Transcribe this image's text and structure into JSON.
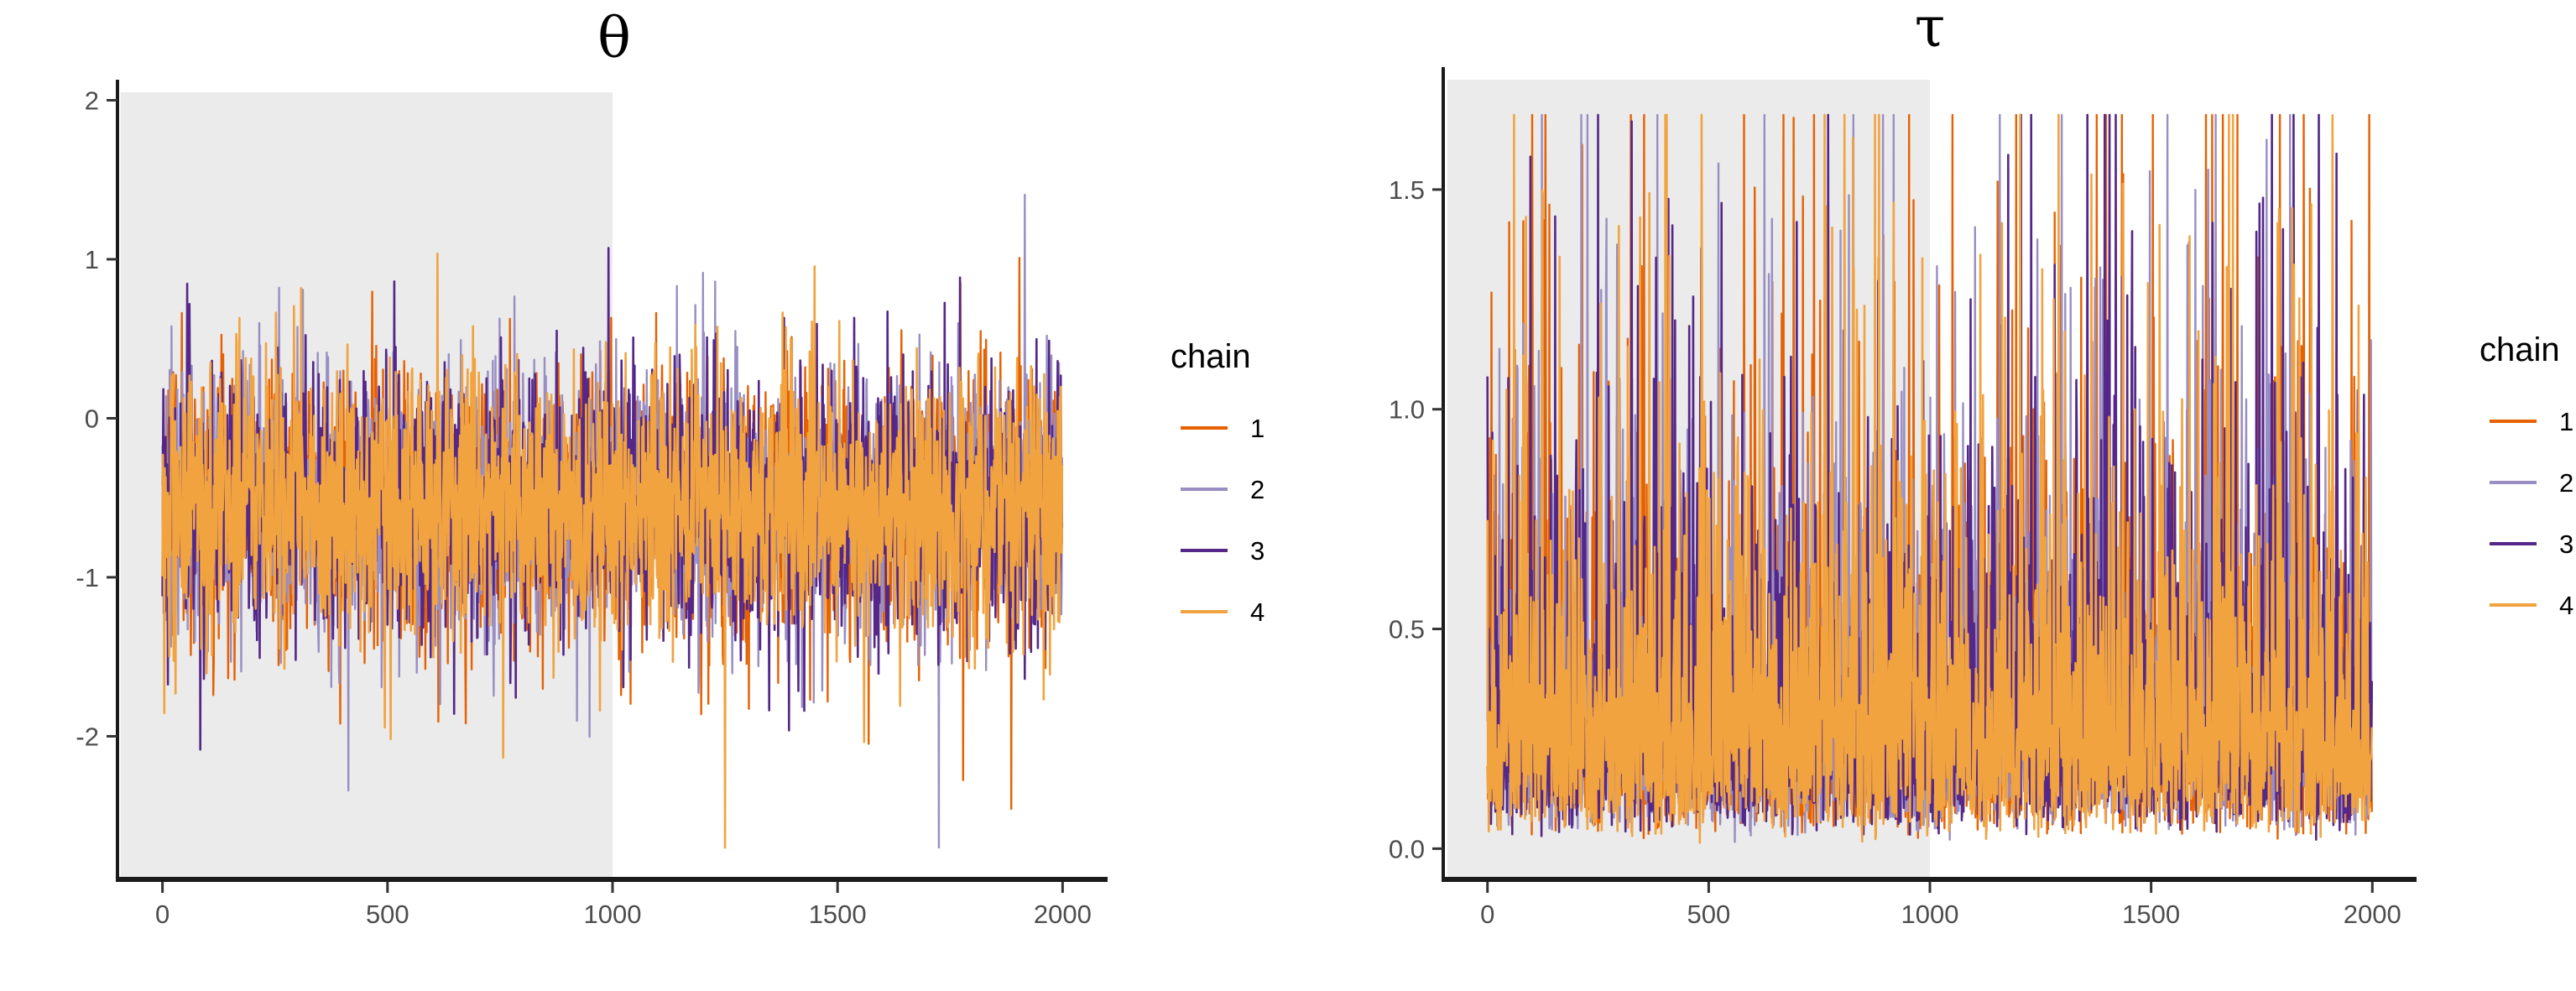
{
  "chart_data": [
    {
      "type": "line",
      "title": "θ",
      "xlabel": "",
      "ylabel": "",
      "x_ticks": [
        0,
        500,
        1000,
        1500,
        2000
      ],
      "x_tick_labels": [
        "0",
        "500",
        "1000",
        "1500",
        "2000"
      ],
      "y_ticks": [
        2,
        1,
        0,
        -1,
        -2
      ],
      "y_tick_labels": [
        "2",
        "1",
        "0",
        "-1",
        "-2"
      ],
      "xlim": [
        -100,
        2100
      ],
      "ylim": [
        -2.9,
        2.05
      ],
      "warmup_region": [
        0,
        1000
      ],
      "grid": false,
      "legend_title": "chain",
      "legend_position": "right",
      "series_summary": {
        "center": -0.55,
        "spread": 0.42,
        "min": -2.7,
        "max": 1.85,
        "n_iterations": 2000
      },
      "series": [
        {
          "name": "1",
          "color": "#e66101"
        },
        {
          "name": "2",
          "color": "#998ec3"
        },
        {
          "name": "3",
          "color": "#542788"
        },
        {
          "name": "4",
          "color": "#f1a340"
        }
      ]
    },
    {
      "type": "line",
      "title": "τ",
      "xlabel": "",
      "ylabel": "",
      "x_ticks": [
        0,
        500,
        1000,
        1500,
        2000
      ],
      "x_tick_labels": [
        "0",
        "500",
        "1000",
        "1500",
        "2000"
      ],
      "y_ticks": [
        1.5,
        1.0,
        0.5,
        0.0
      ],
      "y_tick_labels": [
        "1.5",
        "1.0",
        "0.5",
        "0.0"
      ],
      "xlim": [
        -100,
        2100
      ],
      "ylim": [
        -0.07,
        1.75
      ],
      "warmup_region": [
        0,
        1000
      ],
      "grid": false,
      "legend_title": "chain",
      "legend_position": "right",
      "series_summary": {
        "center": 0.32,
        "min": 0.0,
        "max": 1.67,
        "n_iterations": 2000
      },
      "series": [
        {
          "name": "1",
          "color": "#e66101"
        },
        {
          "name": "2",
          "color": "#998ec3"
        },
        {
          "name": "3",
          "color": "#542788"
        },
        {
          "name": "4",
          "color": "#f1a340"
        }
      ]
    }
  ]
}
